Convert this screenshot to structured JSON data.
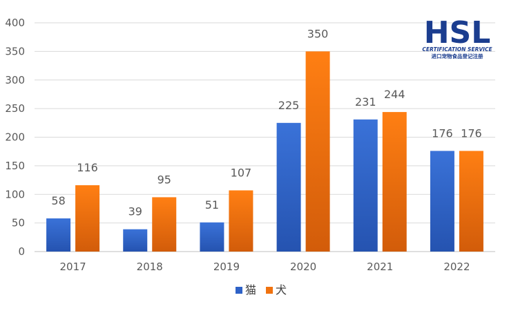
{
  "chart_data": {
    "type": "bar",
    "title": "",
    "xlabel": "",
    "ylabel": "",
    "categories": [
      "2017",
      "2018",
      "2019",
      "2020",
      "2021",
      "2022"
    ],
    "series": [
      {
        "name": "猫",
        "color": "#2e62c7",
        "values": [
          58,
          39,
          51,
          225,
          231,
          176
        ]
      },
      {
        "name": "犬",
        "color": "#f0720f",
        "values": [
          116,
          95,
          107,
          350,
          244,
          176
        ]
      }
    ],
    "ylim": [
      0,
      400
    ],
    "yticks": [
      0,
      50,
      100,
      150,
      200,
      250,
      300,
      350,
      400
    ],
    "grid": true,
    "legend_position": "bottom"
  },
  "logo": {
    "main_text": "HSL",
    "subtitle": "CERTIFICATION SERVICE",
    "chinese_text": "进口宠物食品登记注册",
    "color": "#1b3d8f"
  }
}
